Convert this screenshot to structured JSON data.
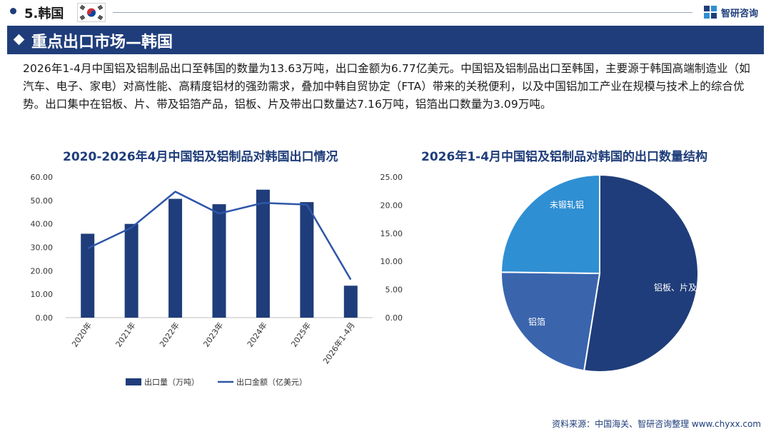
{
  "header": {
    "section_title": "5.韩国",
    "flag_icon": "south-korea-flag",
    "brand": "智研咨询",
    "brand_icon": "zhiyan-logo"
  },
  "banner": {
    "title": "重点出口市场—韩国"
  },
  "paragraph": "2026年1-4月中国铝及铝制品出口至韩国的数量为13.63万吨，出口金额为6.77亿美元。中国铝及铝制品出口至韩国，主要源于韩国高端制造业（如汽车、电子、家电）对高性能、高精度铝材的强劲需求，叠加中韩自贸协定（FTA）带来的关税便利，以及中国铝加工产业在规模与技术上的综合优势。出口集中在铝板、片、带及铝箔产品，铝板、片及带出口数量达7.16万吨，铝箔出口数量为3.09万吨。",
  "colors": {
    "primary": "#1f3d7a",
    "bar": "#1f3d7a",
    "line": "#2e56a8",
    "pie_dark": "#1f3d7a",
    "pie_mid": "#3a65ad",
    "pie_light": "#2f8fd3"
  },
  "chart_data": [
    {
      "type": "bar",
      "title": "2020-2026年4月中国铝及铝制品对韩国出口情况",
      "categories": [
        "2020年",
        "2021年",
        "2022年",
        "2023年",
        "2024年",
        "2025年",
        "2026年1-4月"
      ],
      "series": [
        {
          "name": "出口量（万吨）",
          "type": "bar",
          "axis": "left",
          "values": [
            35.8,
            40.0,
            50.7,
            48.4,
            54.6,
            49.3,
            13.63
          ]
        },
        {
          "name": "出口金额（亿美元）",
          "type": "line",
          "axis": "right",
          "values": [
            12.3,
            16.0,
            22.4,
            18.5,
            20.4,
            20.1,
            6.77
          ]
        }
      ],
      "y_left": {
        "lim": [
          0,
          60
        ],
        "ticks": [
          "0.00",
          "10.00",
          "20.00",
          "30.00",
          "40.00",
          "50.00",
          "60.00"
        ]
      },
      "y_right": {
        "lim": [
          0,
          25
        ],
        "ticks": [
          "0.00",
          "5.00",
          "10.00",
          "15.00",
          "20.00",
          "25.00"
        ]
      },
      "grid": false,
      "legend": "bottom"
    },
    {
      "type": "pie",
      "title": "2026年1-4月中国铝及铝制品对韩国的出口数量结构",
      "slices": [
        {
          "label": "铝板、片及带",
          "value": 7.16
        },
        {
          "label": "铝箔",
          "value": 3.09
        },
        {
          "label": "未锻轧铝",
          "value": 3.38
        }
      ]
    }
  ],
  "source": "资料来源：中国海关、智研咨询整理 www.chyxx.com"
}
